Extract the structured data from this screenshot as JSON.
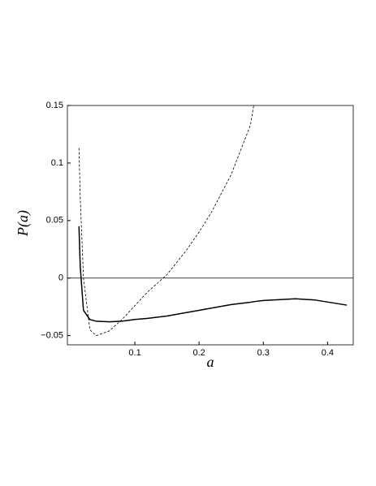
{
  "chart_data": {
    "type": "line",
    "x_label": "a",
    "y_label": "P(a)",
    "x": [
      0.013,
      0.015,
      0.02,
      0.03,
      0.04,
      0.06,
      0.08,
      0.1,
      0.12,
      0.15,
      0.18,
      0.2,
      0.22,
      0.25,
      0.28,
      0.285,
      0.3,
      0.35,
      0.38,
      0.43
    ],
    "series": [
      {
        "color": "#000000",
        "style": "solid",
        "values": [
          0.045,
          0.01,
          -0.028,
          -0.036,
          -0.0375,
          -0.038,
          -0.0375,
          -0.036,
          -0.035,
          -0.033,
          -0.03,
          -0.028,
          -0.026,
          -0.023,
          -0.021,
          -0.0205,
          -0.0195,
          -0.018,
          -0.019,
          -0.0235
        ]
      },
      {
        "color": "#000000",
        "style": "dashed",
        "values": [
          0.113,
          0.07,
          0.0,
          -0.045,
          -0.05,
          -0.046,
          -0.036,
          -0.024,
          -0.012,
          0.003,
          0.024,
          0.04,
          0.058,
          0.09,
          0.133,
          0.15,
          null,
          null,
          null,
          null
        ]
      }
    ],
    "reference_line": 0,
    "xlim": [
      -0.005,
      0.44
    ],
    "ylim": [
      -0.058,
      0.15
    ],
    "xticks": [
      0.1,
      0.2,
      0.3,
      0.4
    ],
    "yticks": [
      0.15,
      0.1,
      0.05,
      0,
      {
        "value": -0.05,
        "label": "−0.05"
      }
    ]
  }
}
